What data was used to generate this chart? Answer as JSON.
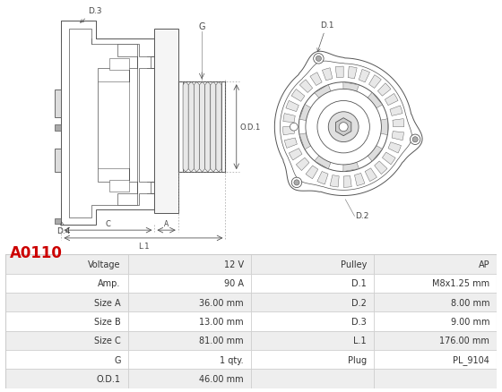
{
  "title": "A0110",
  "title_color": "#cc0000",
  "table_data": [
    [
      "Voltage",
      "12 V",
      "Pulley",
      "AP"
    ],
    [
      "Amp.",
      "90 A",
      "D.1",
      "M8x1.25 mm"
    ],
    [
      "Size A",
      "36.00 mm",
      "D.2",
      "8.00 mm"
    ],
    [
      "Size B",
      "13.00 mm",
      "D.3",
      "9.00 mm"
    ],
    [
      "Size C",
      "81.00 mm",
      "L.1",
      "176.00 mm"
    ],
    [
      "G",
      "1 qty.",
      "Plug",
      "PL_9104"
    ],
    [
      "O.D.1",
      "46.00 mm",
      "",
      ""
    ]
  ],
  "row_bg_odd": "#eeeeee",
  "row_bg_even": "#ffffff",
  "border_color": "#cccccc",
  "text_color": "#333333",
  "background_color": "#ffffff",
  "line_color": "#555555",
  "lw": 0.7
}
